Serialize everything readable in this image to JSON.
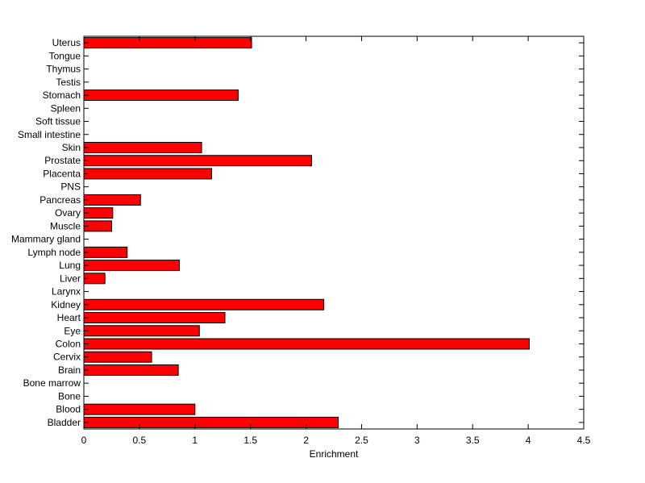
{
  "chart_data": {
    "type": "bar",
    "orientation": "horizontal",
    "title": "",
    "xlabel": "Enrichment",
    "ylabel": "",
    "xlim": [
      0,
      4.5
    ],
    "xticks": [
      0,
      0.5,
      1,
      1.5,
      2,
      2.5,
      3,
      3.5,
      4,
      4.5
    ],
    "xtick_labels": [
      "0",
      "0.5",
      "1",
      "1.5",
      "2",
      "2.5",
      "3",
      "3.5",
      "4",
      "4.5"
    ],
    "grid": false,
    "legend": "none",
    "categories": [
      "Bladder",
      "Blood",
      "Bone",
      "Bone marrow",
      "Brain",
      "Cervix",
      "Colon",
      "Eye",
      "Heart",
      "Kidney",
      "Larynx",
      "Liver",
      "Lung",
      "Lymph node",
      "Mammary gland",
      "Muscle",
      "Ovary",
      "Pancreas",
      "PNS",
      "Placenta",
      "Prostate",
      "Skin",
      "Small intestine",
      "Soft tissue",
      "Spleen",
      "Stomach",
      "Testis",
      "Thymus",
      "Tongue",
      "Uterus"
    ],
    "values": [
      2.29,
      1.0,
      0,
      0,
      0.85,
      0.61,
      4.01,
      1.04,
      1.27,
      2.16,
      0,
      0.19,
      0.86,
      0.39,
      0,
      0.25,
      0.26,
      0.51,
      0,
      1.15,
      2.05,
      1.06,
      0,
      0,
      0,
      1.39,
      0,
      0,
      0,
      1.51
    ],
    "colors": {
      "bar_fill": "#ff0000",
      "bar_edge": "#000000",
      "axis": "#000000",
      "background": "#ffffff"
    }
  }
}
